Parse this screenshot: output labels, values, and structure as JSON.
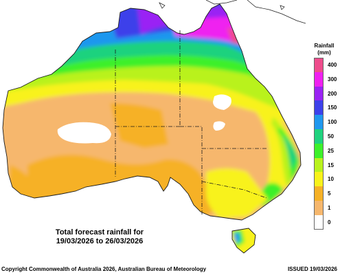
{
  "map": {
    "region": "Australia",
    "variable": "Total forecast rainfall",
    "caption_line1": "Total forecast rainfall for",
    "caption_line2": "19/03/2026 to 26/03/2026"
  },
  "legend": {
    "title": "Rainfall",
    "unit": "(mm)",
    "bins": [
      {
        "label": "400",
        "color": "#ee4c8c"
      },
      {
        "label": "300",
        "color": "#ef20f0"
      },
      {
        "label": "200",
        "color": "#9a23f4"
      },
      {
        "label": "150",
        "color": "#3d41ea"
      },
      {
        "label": "100",
        "color": "#1f97ee"
      },
      {
        "label": "50",
        "color": "#1fd27e"
      },
      {
        "label": "25",
        "color": "#3df02a"
      },
      {
        "label": "15",
        "color": "#b9f21e"
      },
      {
        "label": "10",
        "color": "#f8f21b"
      },
      {
        "label": "5",
        "color": "#f6b126"
      },
      {
        "label": "1",
        "color": "#f6b76d"
      },
      {
        "label": "0",
        "color": "#ffffff"
      }
    ]
  },
  "footer": {
    "copyright": "Copyright Commonwealth of Australia 2026, Australian Bureau of Meteorology",
    "issued": "ISSUED 19/03/2026"
  },
  "colors": {
    "outline": "#1a1a1a",
    "background": "#ffffff"
  }
}
